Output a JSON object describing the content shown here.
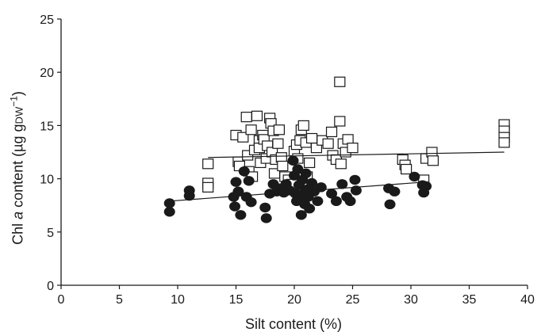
{
  "chart_data": {
    "type": "scatter",
    "title": "",
    "xlabel": "Silt content (%)",
    "ylabel": {
      "prefix": "Chl ",
      "italic": "a",
      "middle": " content (µg g",
      "sub": "DW",
      "sup": "−1",
      "suffix": ")"
    },
    "xlim": [
      0,
      40
    ],
    "ylim": [
      0,
      25
    ],
    "xticks": [
      0,
      5,
      10,
      15,
      20,
      25,
      30,
      35,
      40
    ],
    "yticks": [
      0,
      5,
      10,
      15,
      20,
      25
    ],
    "grid": false,
    "series": [
      {
        "marker": "open-square",
        "color": "#1a1a1a",
        "points": [
          [
            12.6,
            11.4
          ],
          [
            12.6,
            9.6
          ],
          [
            12.6,
            9.2
          ],
          [
            15.0,
            14.1
          ],
          [
            15.2,
            11.6
          ],
          [
            15.3,
            11.2
          ],
          [
            15.6,
            13.9
          ],
          [
            15.9,
            15.8
          ],
          [
            16.0,
            12.2
          ],
          [
            16.1,
            10.7
          ],
          [
            16.3,
            14.6
          ],
          [
            16.4,
            10.2
          ],
          [
            16.6,
            12.7
          ],
          [
            16.8,
            15.9
          ],
          [
            17.0,
            13.6
          ],
          [
            17.0,
            12.9
          ],
          [
            17.1,
            11.5
          ],
          [
            17.3,
            14.1
          ],
          [
            17.4,
            13.7
          ],
          [
            17.6,
            11.9
          ],
          [
            17.7,
            13.1
          ],
          [
            17.9,
            15.7
          ],
          [
            18.0,
            15.2
          ],
          [
            18.1,
            12.5
          ],
          [
            18.2,
            14.5
          ],
          [
            18.3,
            10.5
          ],
          [
            18.4,
            11.8
          ],
          [
            18.6,
            13.3
          ],
          [
            18.7,
            14.6
          ],
          [
            18.9,
            12.0
          ],
          [
            19.0,
            11.2
          ],
          [
            19.2,
            10.2
          ],
          [
            19.5,
            9.9
          ],
          [
            19.8,
            9.5
          ],
          [
            20.0,
            12.6
          ],
          [
            20.2,
            13.2
          ],
          [
            20.3,
            11.9
          ],
          [
            20.5,
            13.6
          ],
          [
            20.6,
            14.6
          ],
          [
            20.8,
            15.0
          ],
          [
            21.0,
            13.4
          ],
          [
            21.1,
            10.2
          ],
          [
            21.3,
            11.5
          ],
          [
            21.5,
            13.8
          ],
          [
            21.9,
            12.9
          ],
          [
            22.4,
            13.6
          ],
          [
            22.9,
            13.3
          ],
          [
            23.2,
            14.4
          ],
          [
            23.3,
            12.2
          ],
          [
            23.6,
            11.8
          ],
          [
            23.9,
            19.1
          ],
          [
            23.9,
            15.4
          ],
          [
            24.0,
            11.4
          ],
          [
            24.2,
            13.3
          ],
          [
            24.4,
            12.5
          ],
          [
            24.6,
            13.7
          ],
          [
            25.0,
            12.9
          ],
          [
            29.3,
            11.8
          ],
          [
            29.5,
            11.3
          ],
          [
            29.6,
            10.9
          ],
          [
            31.1,
            9.9
          ],
          [
            31.3,
            11.9
          ],
          [
            31.8,
            12.5
          ],
          [
            31.9,
            11.7
          ],
          [
            38.0,
            15.1
          ],
          [
            38.0,
            14.5
          ],
          [
            38.0,
            13.9
          ],
          [
            38.0,
            13.4
          ]
        ]
      },
      {
        "marker": "filled-circle",
        "color": "#1a1a1a",
        "points": [
          [
            9.3,
            7.7
          ],
          [
            9.3,
            6.9
          ],
          [
            11.0,
            8.9
          ],
          [
            11.0,
            8.4
          ],
          [
            14.8,
            8.3
          ],
          [
            14.9,
            7.4
          ],
          [
            15.0,
            9.7
          ],
          [
            15.2,
            8.8
          ],
          [
            15.4,
            6.6
          ],
          [
            15.7,
            10.7
          ],
          [
            15.9,
            8.3
          ],
          [
            16.1,
            9.8
          ],
          [
            16.3,
            7.8
          ],
          [
            17.5,
            7.3
          ],
          [
            17.6,
            6.3
          ],
          [
            17.9,
            8.6
          ],
          [
            18.2,
            9.5
          ],
          [
            18.5,
            8.8
          ],
          [
            18.8,
            9.1
          ],
          [
            19.1,
            8.7
          ],
          [
            19.3,
            9.5
          ],
          [
            19.6,
            8.9
          ],
          [
            19.9,
            11.7
          ],
          [
            20.0,
            10.3
          ],
          [
            20.1,
            8.6
          ],
          [
            20.2,
            7.9
          ],
          [
            20.3,
            10.9
          ],
          [
            20.4,
            9.4
          ],
          [
            20.5,
            8.2
          ],
          [
            20.6,
            6.6
          ],
          [
            20.7,
            9.9
          ],
          [
            20.8,
            8.6
          ],
          [
            20.9,
            7.6
          ],
          [
            21.0,
            10.5
          ],
          [
            21.1,
            9.0
          ],
          [
            21.2,
            8.3
          ],
          [
            21.3,
            7.2
          ],
          [
            21.5,
            9.6
          ],
          [
            21.7,
            8.8
          ],
          [
            22.0,
            7.9
          ],
          [
            22.3,
            9.2
          ],
          [
            23.2,
            8.6
          ],
          [
            23.6,
            7.9
          ],
          [
            24.1,
            9.5
          ],
          [
            24.5,
            8.3
          ],
          [
            24.8,
            7.9
          ],
          [
            25.2,
            9.9
          ],
          [
            25.3,
            8.9
          ],
          [
            28.1,
            9.1
          ],
          [
            28.2,
            7.6
          ],
          [
            28.6,
            8.8
          ],
          [
            30.3,
            10.2
          ],
          [
            31.0,
            9.4
          ],
          [
            31.1,
            8.7
          ],
          [
            31.3,
            9.3
          ]
        ]
      }
    ],
    "trendlines": [
      {
        "x": [
          12.6,
          38.0
        ],
        "y": [
          12.0,
          12.5
        ]
      },
      {
        "x": [
          9.3,
          31.3
        ],
        "y": [
          7.9,
          9.7
        ]
      }
    ]
  }
}
